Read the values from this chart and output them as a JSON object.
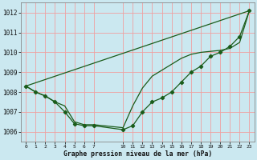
{
  "background_color": "#cbe8f0",
  "grid_color": "#f0a0a0",
  "line_color": "#1a5c1a",
  "title": "Graphe pression niveau de la mer (hPa)",
  "ylim": [
    1005.5,
    1012.5
  ],
  "xlim": [
    -0.5,
    23.5
  ],
  "yticks": [
    1006,
    1007,
    1008,
    1009,
    1010,
    1011,
    1012
  ],
  "xticks": [
    0,
    1,
    2,
    3,
    4,
    5,
    6,
    7,
    10,
    11,
    12,
    13,
    14,
    15,
    16,
    17,
    18,
    19,
    20,
    21,
    22,
    23
  ],
  "series_bottom": {
    "x": [
      0,
      1,
      2,
      3,
      4,
      5,
      6,
      7,
      10,
      11,
      12,
      13,
      14,
      15,
      16,
      17,
      18,
      19,
      20,
      21,
      22,
      23
    ],
    "y": [
      1008.3,
      1008.0,
      1007.8,
      1007.5,
      1007.0,
      1006.4,
      1006.3,
      1006.3,
      1006.1,
      1006.3,
      1007.0,
      1007.5,
      1007.7,
      1008.0,
      1008.5,
      1009.0,
      1009.3,
      1009.8,
      1010.0,
      1010.3,
      1010.8,
      1012.1
    ]
  },
  "series_mid": {
    "x": [
      0,
      1,
      2,
      3,
      4,
      5,
      6,
      7,
      10,
      11,
      12,
      13,
      14,
      15,
      16,
      17,
      18,
      19,
      20,
      21,
      22,
      23
    ],
    "y": [
      1008.3,
      1008.0,
      1007.8,
      1007.5,
      1007.3,
      1006.5,
      1006.35,
      1006.35,
      1006.2,
      1007.3,
      1008.2,
      1008.8,
      1009.1,
      1009.4,
      1009.7,
      1009.9,
      1010.0,
      1010.05,
      1010.1,
      1010.2,
      1010.5,
      1012.1
    ]
  },
  "series_top": {
    "x": [
      0,
      23
    ],
    "y": [
      1008.3,
      1012.1
    ]
  }
}
